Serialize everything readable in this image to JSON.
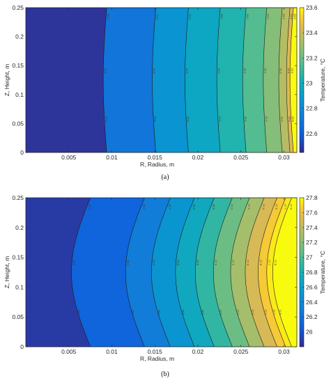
{
  "chart_data": [
    {
      "type": "contour",
      "caption": "(a)",
      "xlabel": "R, Radius, m",
      "ylabel": "Z, Height, m",
      "colorbar_label": "Temperature, °C",
      "xlim": [
        0,
        0.0315
      ],
      "ylim": [
        0,
        0.25
      ],
      "x_ticks": [
        "0.005",
        "0.01",
        "0.015",
        "0.02",
        "0.025",
        "0.03"
      ],
      "y_ticks": [
        "0",
        "0.05",
        "0.1",
        "0.15",
        "0.2",
        "0.25"
      ],
      "colorbar_range": [
        22.45,
        23.6
      ],
      "colorbar_ticks": [
        "22.6",
        "22.8",
        "23",
        "23.2",
        "23.4",
        "23.6"
      ],
      "contour_levels": [
        22.6,
        22.8,
        22.9,
        23.0,
        23.1,
        23.2,
        23.3,
        23.4,
        23.5
      ],
      "contour_r_positions": [
        0.0094,
        0.0151,
        0.0189,
        0.0226,
        0.0256,
        0.028,
        0.0298,
        0.0307,
        0.0311
      ],
      "contour_bulge": 0.0008
    },
    {
      "type": "contour",
      "caption": "(b)",
      "xlabel": "R, Radius, m",
      "ylabel": "Z, Height, m",
      "colorbar_label": "Temperature, °C",
      "xlim": [
        0,
        0.0315
      ],
      "ylim": [
        0,
        0.25
      ],
      "x_ticks": [
        "0.005",
        "0.01",
        "0.015",
        "0.02",
        "0.025",
        "0.03"
      ],
      "y_ticks": [
        "0",
        "0.05",
        "0.1",
        "0.15",
        "0.2",
        "0.25"
      ],
      "colorbar_range": [
        25.8,
        27.8
      ],
      "colorbar_ticks": [
        "26",
        "26.2",
        "26.4",
        "26.6",
        "26.8",
        "27",
        "27.2",
        "27.4",
        "27.6",
        "27.8"
      ],
      "contour_levels": [
        26.0,
        26.2,
        26.4,
        26.6,
        26.8,
        27.0,
        27.2,
        27.4,
        27.6,
        27.7,
        27.8
      ],
      "contour_r_positions": [
        0.0075,
        0.0138,
        0.0168,
        0.0196,
        0.0219,
        0.024,
        0.026,
        0.0277,
        0.0292,
        0.0302,
        0.0309
      ],
      "contour_bulge": 0.0022
    }
  ]
}
